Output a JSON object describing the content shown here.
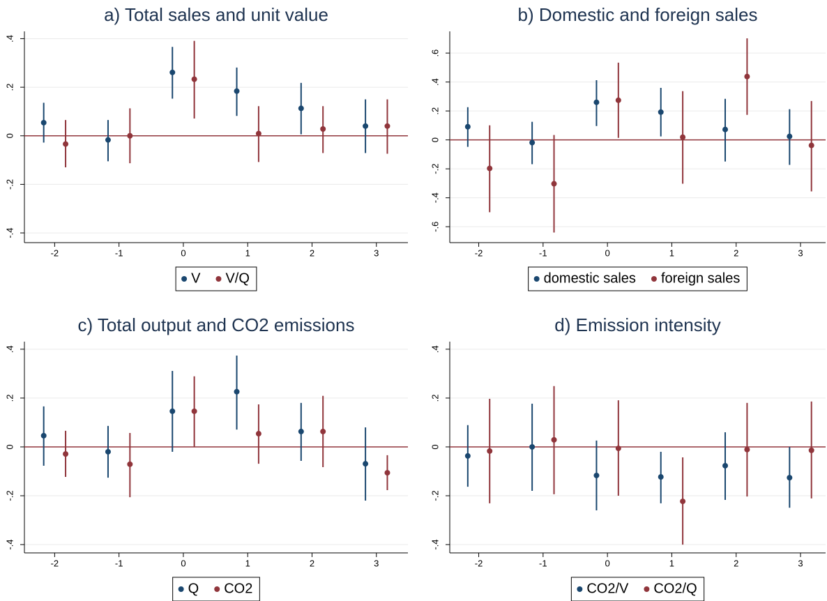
{
  "chart_data": [
    {
      "type": "errorbar",
      "title": "a) Total sales and unit value",
      "xlim": [
        -2.47,
        3.49
      ],
      "xticks": [
        -2,
        -1,
        0,
        1,
        2,
        3
      ],
      "ylim": [
        -0.44,
        0.43
      ],
      "yticks": [
        {
          "value": -0.4,
          "label": "-.4"
        },
        {
          "value": -0.2,
          "label": "-.2"
        },
        0,
        {
          "value": 0.2,
          "label": ".2"
        },
        {
          "value": 0.4,
          "label": ".4"
        }
      ],
      "grid": true,
      "legend": "bottom",
      "hline": 0,
      "hline_color": "#90353b",
      "series": [
        {
          "name": "V",
          "color": "#1a476f",
          "x": [
            -2.17,
            -1.17,
            -0.17,
            0.83,
            1.83,
            2.83
          ],
          "values": [
            0.054,
            -0.017,
            0.261,
            0.184,
            0.113,
            0.04
          ],
          "lower": [
            -0.028,
            -0.105,
            0.153,
            0.082,
            0.006,
            -0.071
          ],
          "upper": [
            0.136,
            0.065,
            0.366,
            0.281,
            0.218,
            0.15
          ]
        },
        {
          "name": "V/Q",
          "color": "#90353b",
          "x": [
            -1.83,
            -0.83,
            0.17,
            1.17,
            2.17,
            3.17
          ],
          "values": [
            -0.034,
            0,
            0.233,
            0.009,
            0.028,
            0.04
          ],
          "lower": [
            -0.13,
            -0.113,
            0.071,
            -0.108,
            -0.071,
            -0.074
          ],
          "upper": [
            0.065,
            0.113,
            0.391,
            0.122,
            0.122,
            0.15
          ]
        }
      ]
    },
    {
      "type": "errorbar",
      "title": "b) Domestic and foreign sales",
      "xlim": [
        -2.45,
        3.39
      ],
      "xticks": [
        -2,
        -1,
        0,
        1,
        2,
        3
      ],
      "ylim": [
        -0.71,
        0.75
      ],
      "yticks": [
        {
          "value": -0.6,
          "label": "-.6"
        },
        {
          "value": -0.4,
          "label": "-.4"
        },
        {
          "value": -0.2,
          "label": "-.2"
        },
        0,
        {
          "value": 0.2,
          "label": ".2"
        },
        {
          "value": 0.4,
          "label": ".4"
        },
        {
          "value": 0.6,
          "label": ".6"
        }
      ],
      "grid": true,
      "legend": "bottom",
      "hline": 0,
      "hline_color": "#90353b",
      "series": [
        {
          "name": "domestic sales",
          "color": "#1a476f",
          "x": [
            -2.17,
            -1.17,
            -0.17,
            0.83,
            1.83,
            2.83
          ],
          "values": [
            0.091,
            -0.019,
            0.26,
            0.192,
            0.072,
            0.024
          ],
          "lower": [
            -0.048,
            -0.168,
            0.096,
            0.024,
            -0.149,
            -0.173
          ],
          "upper": [
            0.226,
            0.125,
            0.413,
            0.36,
            0.284,
            0.212
          ]
        },
        {
          "name": "foreign sales",
          "color": "#90353b",
          "x": [
            -1.83,
            -0.83,
            0.17,
            1.17,
            2.17,
            3.17
          ],
          "values": [
            -0.197,
            -0.303,
            0.274,
            0.019,
            0.438,
            -0.038
          ],
          "lower": [
            -0.5,
            -0.64,
            0.014,
            -0.303,
            0.173,
            -0.356
          ],
          "upper": [
            0.101,
            0.034,
            0.534,
            0.337,
            0.702,
            0.269
          ]
        }
      ]
    },
    {
      "type": "errorbar",
      "title": "c) Total output and CO2 emissions",
      "xlim": [
        -2.47,
        3.49
      ],
      "xticks": [
        -2,
        -1,
        0,
        1,
        2,
        3
      ],
      "ylim": [
        -0.434,
        0.431
      ],
      "yticks": [
        {
          "value": -0.4,
          "label": "-.4"
        },
        {
          "value": -0.2,
          "label": "-.2"
        },
        0,
        {
          "value": 0.2,
          "label": ".2"
        },
        {
          "value": 0.4,
          "label": ".4"
        }
      ],
      "grid": true,
      "legend": "bottom",
      "hline": 0,
      "hline_color": "#90353b",
      "series": [
        {
          "name": "Q",
          "color": "#1a476f",
          "x": [
            -2.17,
            -1.17,
            -0.17,
            0.83,
            1.83,
            2.83
          ],
          "values": [
            0.046,
            -0.02,
            0.146,
            0.226,
            0.063,
            -0.069
          ],
          "lower": [
            -0.077,
            -0.126,
            -0.02,
            0.071,
            -0.057,
            -0.22
          ],
          "upper": [
            0.166,
            0.086,
            0.311,
            0.374,
            0.18,
            0.08
          ]
        },
        {
          "name": "CO2",
          "color": "#90353b",
          "x": [
            -1.83,
            -0.83,
            0.17,
            1.17,
            2.17,
            3.17
          ],
          "values": [
            -0.029,
            -0.071,
            0.146,
            0.054,
            0.063,
            -0.106
          ],
          "lower": [
            -0.123,
            -0.206,
            0,
            -0.069,
            -0.083,
            -0.177
          ],
          "upper": [
            0.066,
            0.057,
            0.289,
            0.174,
            0.209,
            -0.034
          ]
        }
      ]
    },
    {
      "type": "errorbar",
      "title": "d) Emission intensity",
      "xlim": [
        -2.45,
        3.39
      ],
      "xticks": [
        -2,
        -1,
        0,
        1,
        2,
        3
      ],
      "ylim": [
        -0.434,
        0.431
      ],
      "yticks": [
        {
          "value": -0.4,
          "label": "-.4"
        },
        {
          "value": -0.2,
          "label": "-.2"
        },
        0,
        {
          "value": 0.2,
          "label": ".2"
        },
        {
          "value": 0.4,
          "label": ".4"
        }
      ],
      "grid": true,
      "legend": "bottom",
      "hline": 0,
      "hline_color": "#90353b",
      "series": [
        {
          "name": "CO2/V",
          "color": "#1a476f",
          "x": [
            -2.17,
            -1.17,
            -0.17,
            0.83,
            1.83,
            2.83
          ],
          "values": [
            -0.037,
            0,
            -0.117,
            -0.123,
            -0.077,
            -0.126
          ],
          "lower": [
            -0.163,
            -0.18,
            -0.26,
            -0.231,
            -0.217,
            -0.249
          ],
          "upper": [
            0.089,
            0.177,
            0.026,
            -0.02,
            0.06,
            0
          ]
        },
        {
          "name": "CO2/Q",
          "color": "#90353b",
          "x": [
            -1.83,
            -0.83,
            0.17,
            1.17,
            2.17,
            3.17
          ],
          "values": [
            -0.017,
            0.029,
            -0.006,
            -0.223,
            -0.011,
            -0.014
          ],
          "lower": [
            -0.231,
            -0.194,
            -0.2,
            -0.4,
            -0.203,
            -0.211
          ],
          "upper": [
            0.197,
            0.249,
            0.191,
            -0.043,
            0.18,
            0.186
          ]
        }
      ]
    }
  ]
}
